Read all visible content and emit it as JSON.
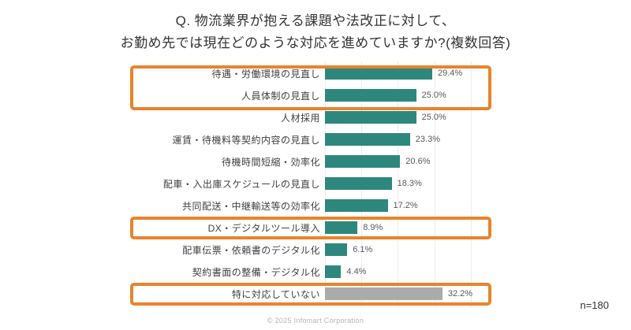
{
  "chart_data": {
    "type": "bar",
    "orientation": "horizontal",
    "title_line1": "Q. 物流業界が抱える課題や法改正に対して、",
    "title_line2": "お勤め先では現在どのような対応を進めていますか?(複数回答)",
    "categories": [
      "待遇・労働環境の見直し",
      "人員体制の見直し",
      "人材採用",
      "運賃・待機料等契約内容の見直し",
      "待機時間短縮・効率化",
      "配車・入出庫スケジュールの見直し",
      "共同配送・中継輸送等の効率化",
      "DX・デジタルツール導入",
      "配車伝票・依頼書のデジタル化",
      "契約書面の整備・デジタル化",
      "特に対応していない"
    ],
    "values": [
      29.4,
      25.0,
      25.0,
      23.3,
      20.6,
      18.3,
      17.2,
      8.9,
      6.1,
      4.4,
      32.2
    ],
    "value_labels": [
      "29.4%",
      "25.0%",
      "25.0%",
      "23.3%",
      "20.6%",
      "18.3%",
      "17.2%",
      "8.9%",
      "6.1%",
      "4.4%",
      "32.2%"
    ],
    "xlim": [
      0,
      40
    ],
    "gridlines_pct": [
      0,
      10,
      20,
      30,
      40
    ],
    "grid": "on",
    "bar_color": "#2E877C",
    "muted_bar_color": "#ABABAB",
    "muted_categories": [
      "特に対応していない"
    ],
    "highlight_color": "#E8842B",
    "highlighted_groups": [
      [
        "待遇・労働環境の見直し",
        "人員体制の見直し"
      ],
      [
        "DX・デジタルツール導入"
      ],
      [
        "特に対応していない"
      ]
    ]
  },
  "footnote": {
    "sample_size": "n=180"
  },
  "footer": {
    "copyright": "© 2025 Infomart Corporation"
  }
}
